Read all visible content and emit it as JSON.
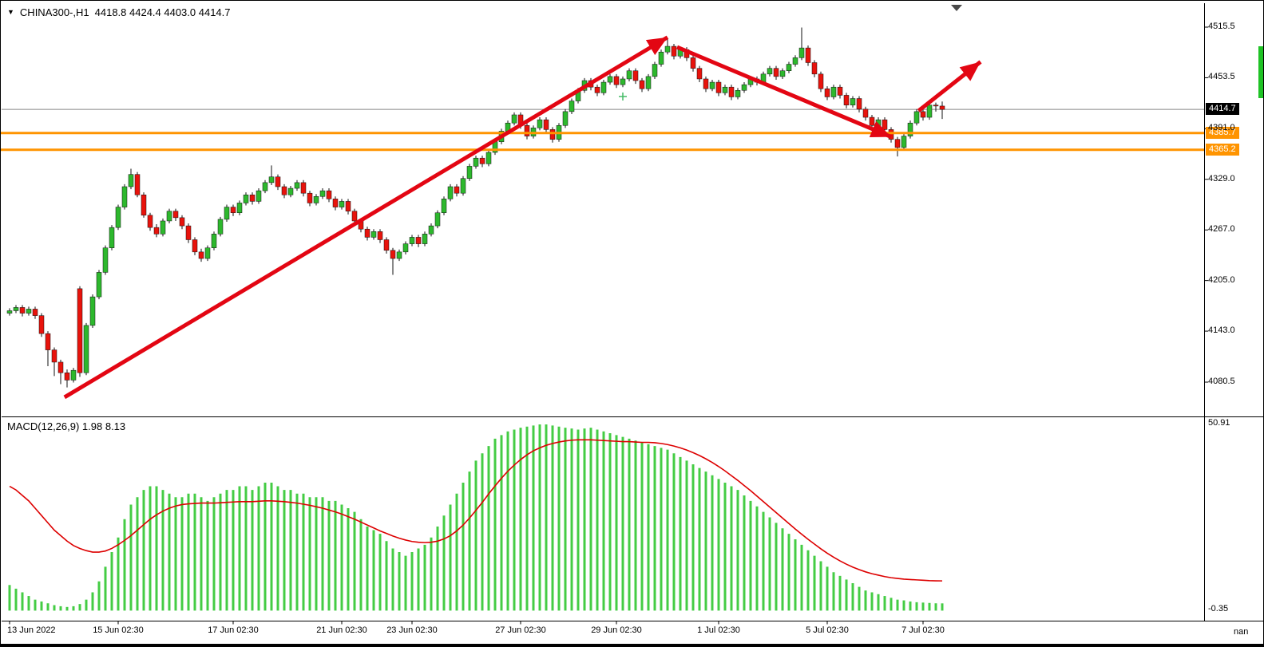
{
  "header": {
    "collapse_icon": "▼",
    "symbol": "CHINA300-,H1",
    "ohlc": "4418.8 4424.4 4403.0 4414.7"
  },
  "macd": {
    "label": "MACD(12,26,9) 1.98 8.13",
    "max_label": "50.91",
    "min_label": "-0.35",
    "nan_label": "nan"
  },
  "colors": {
    "bull": "#2DB82D",
    "bear": "#E8130C",
    "wick": "#111111",
    "hist": "#44CC44",
    "signal": "#DD0000",
    "orange_line": "#FF9400",
    "arrow": "#E30613",
    "current_line": "#888888",
    "price_tag_bg": "#000000",
    "edge_marker": "#1FC325",
    "cross_marker": "#44BB66",
    "shift_marker": "#4A4A4A"
  },
  "chart_data": {
    "type": "candlestick",
    "title": "CHINA300-,H1",
    "grid": "off",
    "price_axis": {
      "range": [
        4080.5,
        4515.5
      ],
      "ticks": [
        "4515.5",
        "4453.5",
        "4391.0",
        "4329.0",
        "4267.0",
        "4205.0",
        "4143.0",
        "4080.5"
      ],
      "current_price": 4414.7,
      "current_label": "4414.7"
    },
    "hlines": [
      {
        "value": 4385.7,
        "label": "4385.7"
      },
      {
        "value": 4365.2,
        "label": "4365.2"
      }
    ],
    "time_ticks": [
      {
        "label": "13 Jun 2022",
        "bar": 0
      },
      {
        "label": "15 Jun 02:30",
        "bar": 17
      },
      {
        "label": "17 Jun 02:30",
        "bar": 35
      },
      {
        "label": "21 Jun 02:30",
        "bar": 52
      },
      {
        "label": "23 Jun 02:30",
        "bar": 63
      },
      {
        "label": "27 Jun 02:30",
        "bar": 80
      },
      {
        "label": "29 Jun 02:30",
        "bar": 95
      },
      {
        "label": "1 Jul 02:30",
        "bar": 111
      },
      {
        "label": "5 Jul 02:30",
        "bar": 128
      },
      {
        "label": "7 Jul 02:30",
        "bar": 143
      }
    ],
    "candles": [
      [
        4165,
        4171,
        4162,
        4168
      ],
      [
        4168,
        4175,
        4165,
        4172
      ],
      [
        4172,
        4175,
        4161,
        4165
      ],
      [
        4165,
        4173,
        4162,
        4170
      ],
      [
        4170,
        4173,
        4158,
        4162
      ],
      [
        4162,
        4165,
        4136,
        4140
      ],
      [
        4140,
        4143,
        4100,
        4120
      ],
      [
        4120,
        4123,
        4088,
        4105
      ],
      [
        4105,
        4108,
        4078,
        4092
      ],
      [
        4092,
        4096,
        4074,
        4083
      ],
      [
        4083,
        4098,
        4080,
        4095
      ],
      [
        4195,
        4198,
        4087,
        4092
      ],
      [
        4092,
        4153,
        4089,
        4150
      ],
      [
        4150,
        4188,
        4147,
        4185
      ],
      [
        4185,
        4218,
        4182,
        4215
      ],
      [
        4215,
        4248,
        4212,
        4245
      ],
      [
        4245,
        4273,
        4242,
        4270
      ],
      [
        4270,
        4298,
        4267,
        4295
      ],
      [
        4295,
        4323,
        4292,
        4320
      ],
      [
        4320,
        4342,
        4317,
        4335
      ],
      [
        4335,
        4338,
        4307,
        4310
      ],
      [
        4310,
        4313,
        4282,
        4285
      ],
      [
        4285,
        4288,
        4266,
        4270
      ],
      [
        4270,
        4274,
        4258,
        4262
      ],
      [
        4262,
        4281,
        4259,
        4278
      ],
      [
        4278,
        4293,
        4275,
        4290
      ],
      [
        4290,
        4293,
        4278,
        4282
      ],
      [
        4282,
        4285,
        4268,
        4272
      ],
      [
        4272,
        4275,
        4251,
        4255
      ],
      [
        4255,
        4258,
        4236,
        4240
      ],
      [
        4240,
        4244,
        4228,
        4232
      ],
      [
        4232,
        4248,
        4229,
        4245
      ],
      [
        4245,
        4265,
        4242,
        4262
      ],
      [
        4262,
        4283,
        4259,
        4280
      ],
      [
        4280,
        4298,
        4277,
        4295
      ],
      [
        4295,
        4298,
        4284,
        4288
      ],
      [
        4288,
        4303,
        4285,
        4300
      ],
      [
        4300,
        4313,
        4297,
        4310
      ],
      [
        4310,
        4313,
        4298,
        4302
      ],
      [
        4302,
        4318,
        4299,
        4315
      ],
      [
        4315,
        4328,
        4312,
        4325
      ],
      [
        4325,
        4346,
        4322,
        4332
      ],
      [
        4332,
        4335,
        4316,
        4320
      ],
      [
        4320,
        4323,
        4306,
        4310
      ],
      [
        4310,
        4321,
        4307,
        4318
      ],
      [
        4318,
        4328,
        4315,
        4325
      ],
      [
        4325,
        4328,
        4308,
        4312
      ],
      [
        4312,
        4315,
        4296,
        4300
      ],
      [
        4300,
        4311,
        4297,
        4308
      ],
      [
        4308,
        4318,
        4305,
        4315
      ],
      [
        4315,
        4318,
        4301,
        4305
      ],
      [
        4305,
        4308,
        4291,
        4295
      ],
      [
        4295,
        4305,
        4292,
        4302
      ],
      [
        4302,
        4305,
        4286,
        4290
      ],
      [
        4290,
        4293,
        4274,
        4278
      ],
      [
        4278,
        4281,
        4264,
        4268
      ],
      [
        4268,
        4271,
        4254,
        4258
      ],
      [
        4258,
        4268,
        4255,
        4265
      ],
      [
        4265,
        4268,
        4251,
        4255
      ],
      [
        4255,
        4258,
        4238,
        4242
      ],
      [
        4242,
        4245,
        4212,
        4232
      ],
      [
        4232,
        4243,
        4229,
        4240
      ],
      [
        4240,
        4253,
        4237,
        4250
      ],
      [
        4250,
        4261,
        4247,
        4258
      ],
      [
        4258,
        4261,
        4246,
        4250
      ],
      [
        4250,
        4265,
        4247,
        4262
      ],
      [
        4262,
        4275,
        4259,
        4272
      ],
      [
        4272,
        4291,
        4269,
        4288
      ],
      [
        4288,
        4308,
        4285,
        4305
      ],
      [
        4305,
        4323,
        4302,
        4320
      ],
      [
        4320,
        4323,
        4308,
        4312
      ],
      [
        4312,
        4333,
        4309,
        4330
      ],
      [
        4330,
        4348,
        4327,
        4345
      ],
      [
        4345,
        4358,
        4342,
        4355
      ],
      [
        4355,
        4358,
        4344,
        4348
      ],
      [
        4348,
        4365,
        4345,
        4362
      ],
      [
        4362,
        4378,
        4359,
        4375
      ],
      [
        4375,
        4391,
        4372,
        4388
      ],
      [
        4388,
        4401,
        4385,
        4398
      ],
      [
        4398,
        4411,
        4395,
        4408
      ],
      [
        4408,
        4411,
        4391,
        4395
      ],
      [
        4395,
        4398,
        4378,
        4382
      ],
      [
        4382,
        4395,
        4379,
        4392
      ],
      [
        4392,
        4405,
        4389,
        4402
      ],
      [
        4402,
        4405,
        4386,
        4390
      ],
      [
        4390,
        4393,
        4374,
        4378
      ],
      [
        4378,
        4398,
        4375,
        4395
      ],
      [
        4395,
        4415,
        4392,
        4412
      ],
      [
        4412,
        4428,
        4409,
        4425
      ],
      [
        4425,
        4441,
        4422,
        4438
      ],
      [
        4438,
        4453,
        4435,
        4450
      ],
      [
        4450,
        4453,
        4438,
        4442
      ],
      [
        4442,
        4445,
        4431,
        4435
      ],
      [
        4435,
        4451,
        4432,
        4448
      ],
      [
        4448,
        4458,
        4445,
        4455
      ],
      [
        4455,
        4458,
        4441,
        4445
      ],
      [
        4445,
        4455,
        4442,
        4452
      ],
      [
        4452,
        4465,
        4449,
        4462
      ],
      [
        4462,
        4465,
        4446,
        4450
      ],
      [
        4450,
        4453,
        4436,
        4440
      ],
      [
        4440,
        4458,
        4437,
        4455
      ],
      [
        4455,
        4473,
        4452,
        4470
      ],
      [
        4470,
        4488,
        4467,
        4485
      ],
      [
        4485,
        4502,
        4482,
        4492
      ],
      [
        4492,
        4495,
        4476,
        4480
      ],
      [
        4480,
        4491,
        4477,
        4488
      ],
      [
        4488,
        4491,
        4474,
        4478
      ],
      [
        4478,
        4481,
        4461,
        4465
      ],
      [
        4465,
        4468,
        4448,
        4452
      ],
      [
        4452,
        4455,
        4436,
        4440
      ],
      [
        4440,
        4451,
        4437,
        4448
      ],
      [
        4448,
        4451,
        4431,
        4435
      ],
      [
        4435,
        4445,
        4432,
        4442
      ],
      [
        4442,
        4445,
        4426,
        4430
      ],
      [
        4430,
        4441,
        4427,
        4438
      ],
      [
        4438,
        4448,
        4435,
        4445
      ],
      [
        4445,
        4455,
        4442,
        4452
      ],
      [
        4452,
        4455,
        4444,
        4448
      ],
      [
        4448,
        4461,
        4445,
        4458
      ],
      [
        4458,
        4468,
        4455,
        4465
      ],
      [
        4465,
        4468,
        4451,
        4455
      ],
      [
        4455,
        4465,
        4452,
        4462
      ],
      [
        4462,
        4473,
        4459,
        4470
      ],
      [
        4470,
        4481,
        4467,
        4478
      ],
      [
        4478,
        4515,
        4475,
        4490
      ],
      [
        4490,
        4493,
        4468,
        4472
      ],
      [
        4472,
        4475,
        4454,
        4458
      ],
      [
        4458,
        4461,
        4436,
        4440
      ],
      [
        4440,
        4443,
        4426,
        4430
      ],
      [
        4430,
        4445,
        4427,
        4442
      ],
      [
        4442,
        4445,
        4428,
        4432
      ],
      [
        4432,
        4435,
        4416,
        4420
      ],
      [
        4420,
        4431,
        4417,
        4428
      ],
      [
        4428,
        4431,
        4411,
        4415
      ],
      [
        4415,
        4418,
        4401,
        4405
      ],
      [
        4405,
        4408,
        4391,
        4395
      ],
      [
        4395,
        4405,
        4392,
        4402
      ],
      [
        4402,
        4405,
        4386,
        4390
      ],
      [
        4390,
        4393,
        4374,
        4378
      ],
      [
        4378,
        4381,
        4357,
        4368
      ],
      [
        4368,
        4385,
        4365,
        4382
      ],
      [
        4382,
        4401,
        4379,
        4398
      ],
      [
        4398,
        4415,
        4395,
        4412
      ],
      [
        4412,
        4415,
        4401,
        4405
      ],
      [
        4405,
        4423,
        4402,
        4420
      ],
      [
        4420,
        4423,
        4412,
        4418.8
      ],
      [
        4418.8,
        4424.4,
        4403,
        4414.7
      ]
    ],
    "macd": {
      "ylim": [
        -0.35,
        50.91
      ],
      "hist": [
        7,
        6,
        5,
        4,
        3,
        2.5,
        2,
        1.5,
        1.2,
        1,
        1.2,
        1.8,
        3,
        5,
        8,
        12,
        16,
        20,
        25,
        29,
        31,
        33,
        34,
        34,
        33,
        32,
        31,
        31,
        32,
        32,
        31,
        30,
        31,
        32,
        33,
        33,
        34,
        34,
        33,
        34,
        35,
        35,
        34,
        33,
        33,
        32,
        32,
        31,
        31,
        31,
        30,
        30,
        29,
        28,
        27,
        25,
        23,
        22,
        21,
        19,
        17,
        16,
        15,
        16,
        17,
        18,
        20,
        23,
        26,
        29,
        32,
        35,
        38,
        41,
        43,
        45,
        47,
        48,
        49,
        49.5,
        50,
        50.3,
        50.6,
        50.9,
        50.9,
        50.6,
        50.3,
        50,
        49.8,
        49.5,
        49.8,
        50,
        49.5,
        49,
        48.5,
        48,
        47.5,
        47,
        46.5,
        46,
        45.5,
        45,
        44.5,
        44,
        43,
        42,
        41,
        40,
        39,
        38,
        37,
        36,
        35,
        34,
        33,
        31.5,
        30,
        28.5,
        27,
        25.5,
        24,
        22.5,
        21,
        19.5,
        18,
        16.5,
        15,
        13.5,
        12,
        10.5,
        9.5,
        8.5,
        7.5,
        6.5,
        5.5,
        5,
        4.5,
        4,
        3.5,
        3,
        2.8,
        2.5,
        2.3,
        2.2,
        2.1,
        2,
        1.98
      ],
      "signal": [
        34,
        33,
        31.5,
        30,
        28,
        26,
        24,
        22,
        20.5,
        19,
        17.8,
        17,
        16.4,
        16,
        16,
        16.3,
        17,
        18,
        19.2,
        20.5,
        22,
        23.5,
        25,
        26.2,
        27.2,
        28,
        28.6,
        29,
        29.2,
        29.3,
        29.4,
        29.4,
        29.4,
        29.5,
        29.6,
        29.7,
        29.8,
        29.8,
        29.8,
        29.9,
        30,
        30,
        29.9,
        29.8,
        29.6,
        29.4,
        29.1,
        28.8,
        28.4,
        28,
        27.5,
        27,
        26.4,
        25.7,
        25,
        24.2,
        23.4,
        22.6,
        21.8,
        21.1,
        20.4,
        19.8,
        19.3,
        18.9,
        18.7,
        18.6,
        18.7,
        19,
        19.6,
        20.5,
        21.8,
        23.4,
        25.3,
        27.4,
        29.6,
        31.9,
        34.1,
        36.2,
        38.1,
        39.8,
        41.3,
        42.6,
        43.7,
        44.5,
        45.2,
        45.7,
        46.1,
        46.4,
        46.6,
        46.7,
        46.7,
        46.7,
        46.6,
        46.5,
        46.4,
        46.3,
        46.2,
        46.2,
        46.1,
        46,
        46,
        45.9,
        45.7,
        45.4,
        45,
        44.5,
        43.9,
        43.2,
        42.4,
        41.5,
        40.5,
        39.4,
        38.2,
        36.9,
        35.6,
        34.2,
        32.8,
        31.3,
        29.8,
        28.3,
        26.8,
        25.3,
        23.8,
        22.3,
        20.9,
        19.5,
        18.2,
        16.9,
        15.7,
        14.6,
        13.6,
        12.7,
        11.9,
        11.2,
        10.6,
        10.1,
        9.7,
        9.3,
        9,
        8.8,
        8.6,
        8.5,
        8.4,
        8.3,
        8.2,
        8.15,
        8.13
      ]
    },
    "trend_lines": [
      {
        "x1_bar": 8.6,
        "y1_price": 4062,
        "x2_bar": 103,
        "y2_price": 4503
      },
      {
        "x1_bar": 104.5,
        "y1_price": 4491,
        "x2_bar": 138,
        "y2_price": 4381
      },
      {
        "x1_bar": 142.3,
        "y1_price": 4413,
        "x2_bar": 152,
        "y2_price": 4473
      }
    ],
    "cross_marker": {
      "bar": 96,
      "price": 4430.5
    }
  }
}
